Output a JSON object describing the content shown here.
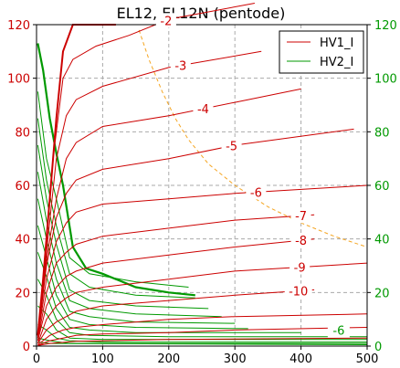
{
  "chart_data": {
    "type": "line",
    "title": "EL12, EL12N (pentode)",
    "xlim": [
      0,
      500
    ],
    "ylim": [
      0,
      120
    ],
    "x_ticks": [
      "0",
      "100",
      "200",
      "300",
      "400",
      "500"
    ],
    "y_ticks_left": [
      "0",
      "20",
      "40",
      "60",
      "80",
      "100",
      "120"
    ],
    "y_ticks_right": [
      "0",
      "20",
      "40",
      "60",
      "80",
      "100",
      "120"
    ],
    "grid": true,
    "legend_position": "top-right",
    "legend": [
      {
        "name": "HV1_I",
        "color": "#cc0000"
      },
      {
        "name": "HV2_I",
        "color": "#009900"
      }
    ],
    "colors": {
      "hv1": "#cc0000",
      "hv2": "#009900",
      "dissipation": "#f5a623",
      "grid": "#aaaaaa"
    },
    "hv1_curves": [
      {
        "label": "",
        "points": [
          [
            2,
            4
          ],
          [
            10,
            25
          ],
          [
            20,
            55
          ],
          [
            30,
            85
          ],
          [
            40,
            110
          ],
          [
            55,
            120
          ],
          [
            80,
            120
          ],
          [
            120,
            120
          ]
        ]
      },
      {
        "label": "-2",
        "points": [
          [
            2,
            4
          ],
          [
            12,
            30
          ],
          [
            25,
            70
          ],
          [
            40,
            100
          ],
          [
            55,
            107
          ],
          [
            90,
            112
          ],
          [
            140,
            116
          ],
          [
            200,
            122
          ],
          [
            330,
            128
          ]
        ]
      },
      {
        "label": "-3",
        "points": [
          [
            2,
            4
          ],
          [
            15,
            35
          ],
          [
            30,
            70
          ],
          [
            45,
            86
          ],
          [
            60,
            92
          ],
          [
            100,
            97
          ],
          [
            200,
            104
          ],
          [
            340,
            110
          ]
        ]
      },
      {
        "label": "-4",
        "points": [
          [
            2,
            4
          ],
          [
            15,
            32
          ],
          [
            30,
            55
          ],
          [
            45,
            70
          ],
          [
            60,
            76
          ],
          [
            100,
            82
          ],
          [
            200,
            86
          ],
          [
            300,
            91
          ],
          [
            400,
            96
          ]
        ]
      },
      {
        "label": "-5",
        "points": [
          [
            2,
            3
          ],
          [
            15,
            30
          ],
          [
            30,
            48
          ],
          [
            45,
            57
          ],
          [
            60,
            62
          ],
          [
            100,
            66
          ],
          [
            200,
            70
          ],
          [
            300,
            75
          ],
          [
            480,
            81
          ]
        ]
      },
      {
        "label": "-6",
        "points": [
          [
            2,
            3
          ],
          [
            15,
            25
          ],
          [
            30,
            39
          ],
          [
            45,
            46
          ],
          [
            60,
            50
          ],
          [
            100,
            53
          ],
          [
            200,
            55
          ],
          [
            300,
            57
          ],
          [
            500,
            60
          ]
        ]
      },
      {
        "label": "-7",
        "points": [
          [
            2,
            2
          ],
          [
            15,
            20
          ],
          [
            30,
            31
          ],
          [
            45,
            35
          ],
          [
            60,
            38
          ],
          [
            100,
            41
          ],
          [
            200,
            44
          ],
          [
            300,
            47
          ],
          [
            420,
            49
          ]
        ]
      },
      {
        "label": "-8",
        "points": [
          [
            2,
            2
          ],
          [
            15,
            15
          ],
          [
            30,
            22
          ],
          [
            45,
            26
          ],
          [
            60,
            28
          ],
          [
            100,
            31
          ],
          [
            200,
            34
          ],
          [
            300,
            37
          ],
          [
            420,
            40
          ]
        ]
      },
      {
        "label": "-9",
        "points": [
          [
            2,
            1
          ],
          [
            15,
            10
          ],
          [
            30,
            15
          ],
          [
            45,
            18
          ],
          [
            60,
            20
          ],
          [
            100,
            22
          ],
          [
            200,
            25
          ],
          [
            300,
            28
          ],
          [
            500,
            31
          ]
        ]
      },
      {
        "label": "-10",
        "points": [
          [
            2,
            1
          ],
          [
            15,
            6
          ],
          [
            30,
            9
          ],
          [
            45,
            11
          ],
          [
            60,
            13
          ],
          [
            100,
            15
          ],
          [
            200,
            17
          ],
          [
            300,
            19
          ],
          [
            420,
            21
          ]
        ]
      },
      {
        "label": "",
        "points": [
          [
            2,
            0.5
          ],
          [
            20,
            4
          ],
          [
            40,
            6
          ],
          [
            60,
            7
          ],
          [
            100,
            8
          ],
          [
            200,
            10
          ],
          [
            300,
            11
          ],
          [
            500,
            12
          ]
        ]
      },
      {
        "label": "",
        "points": [
          [
            2,
            0.3
          ],
          [
            20,
            2
          ],
          [
            40,
            3
          ],
          [
            60,
            4
          ],
          [
            100,
            4.5
          ],
          [
            200,
            5
          ],
          [
            300,
            6
          ],
          [
            500,
            7
          ]
        ]
      },
      {
        "label": "",
        "points": [
          [
            2,
            0.2
          ],
          [
            20,
            1
          ],
          [
            60,
            1.8
          ],
          [
            200,
            2.5
          ],
          [
            500,
            3
          ]
        ]
      }
    ],
    "hv2_thick_curve": {
      "label": "",
      "points": [
        [
          2,
          113
        ],
        [
          10,
          103
        ],
        [
          20,
          85
        ],
        [
          30,
          72
        ],
        [
          40,
          60
        ],
        [
          55,
          37
        ],
        [
          75,
          29
        ],
        [
          100,
          27
        ],
        [
          150,
          22
        ],
        [
          200,
          20
        ],
        [
          240,
          19
        ]
      ]
    },
    "hv2_curves": [
      {
        "points": [
          [
            2,
            95
          ],
          [
            15,
            70
          ],
          [
            30,
            55
          ],
          [
            50,
            33
          ],
          [
            80,
            27
          ],
          [
            150,
            24
          ],
          [
            230,
            22
          ]
        ]
      },
      {
        "points": [
          [
            2,
            85
          ],
          [
            15,
            62
          ],
          [
            30,
            45
          ],
          [
            50,
            27
          ],
          [
            80,
            22
          ],
          [
            150,
            19
          ],
          [
            240,
            18
          ]
        ]
      },
      {
        "points": [
          [
            2,
            75
          ],
          [
            15,
            55
          ],
          [
            30,
            38
          ],
          [
            50,
            21
          ],
          [
            80,
            17
          ],
          [
            150,
            15
          ],
          [
            260,
            14
          ]
        ]
      },
      {
        "points": [
          [
            2,
            65
          ],
          [
            15,
            47
          ],
          [
            30,
            31
          ],
          [
            50,
            17
          ],
          [
            80,
            14
          ],
          [
            150,
            12
          ],
          [
            280,
            11
          ]
        ]
      },
      {
        "points": [
          [
            2,
            55
          ],
          [
            15,
            40
          ],
          [
            30,
            25
          ],
          [
            50,
            13
          ],
          [
            80,
            11
          ],
          [
            150,
            9
          ],
          [
            300,
            8.5
          ]
        ]
      },
      {
        "points": [
          [
            2,
            45
          ],
          [
            15,
            33
          ],
          [
            30,
            19
          ],
          [
            50,
            10
          ],
          [
            80,
            8
          ],
          [
            150,
            7
          ],
          [
            320,
            6.5
          ]
        ]
      },
      {
        "points": [
          [
            2,
            35
          ],
          [
            15,
            26
          ],
          [
            30,
            14
          ],
          [
            50,
            7
          ],
          [
            80,
            6
          ],
          [
            150,
            5
          ],
          [
            400,
            5
          ]
        ]
      },
      {
        "points": [
          [
            2,
            25
          ],
          [
            15,
            19
          ],
          [
            30,
            10
          ],
          [
            50,
            5
          ],
          [
            80,
            4
          ],
          [
            200,
            3.5
          ],
          [
            500,
            3.5
          ]
        ]
      },
      {
        "points": [
          [
            2,
            15
          ],
          [
            15,
            12
          ],
          [
            30,
            6
          ],
          [
            50,
            3
          ],
          [
            100,
            2.5
          ],
          [
            500,
            2.5
          ]
        ]
      },
      {
        "points": [
          [
            2,
            8
          ],
          [
            15,
            6
          ],
          [
            30,
            3
          ],
          [
            50,
            2
          ],
          [
            100,
            1.5
          ],
          [
            500,
            1.5
          ]
        ]
      },
      {
        "points": [
          [
            2,
            3
          ],
          [
            20,
            2
          ],
          [
            50,
            1
          ],
          [
            500,
            1
          ]
        ]
      },
      {
        "points": [
          [
            2,
            1.5
          ],
          [
            20,
            1
          ],
          [
            500,
            0.5
          ]
        ]
      }
    ],
    "hv2_end_label": "-6",
    "dissipation_curve": {
      "points": [
        [
          155,
          118
        ],
        [
          170,
          107
        ],
        [
          190,
          95
        ],
        [
          210,
          85
        ],
        [
          230,
          77
        ],
        [
          260,
          68
        ],
        [
          300,
          60
        ],
        [
          350,
          52
        ],
        [
          400,
          46
        ],
        [
          450,
          41
        ],
        [
          500,
          37
        ]
      ]
    }
  }
}
